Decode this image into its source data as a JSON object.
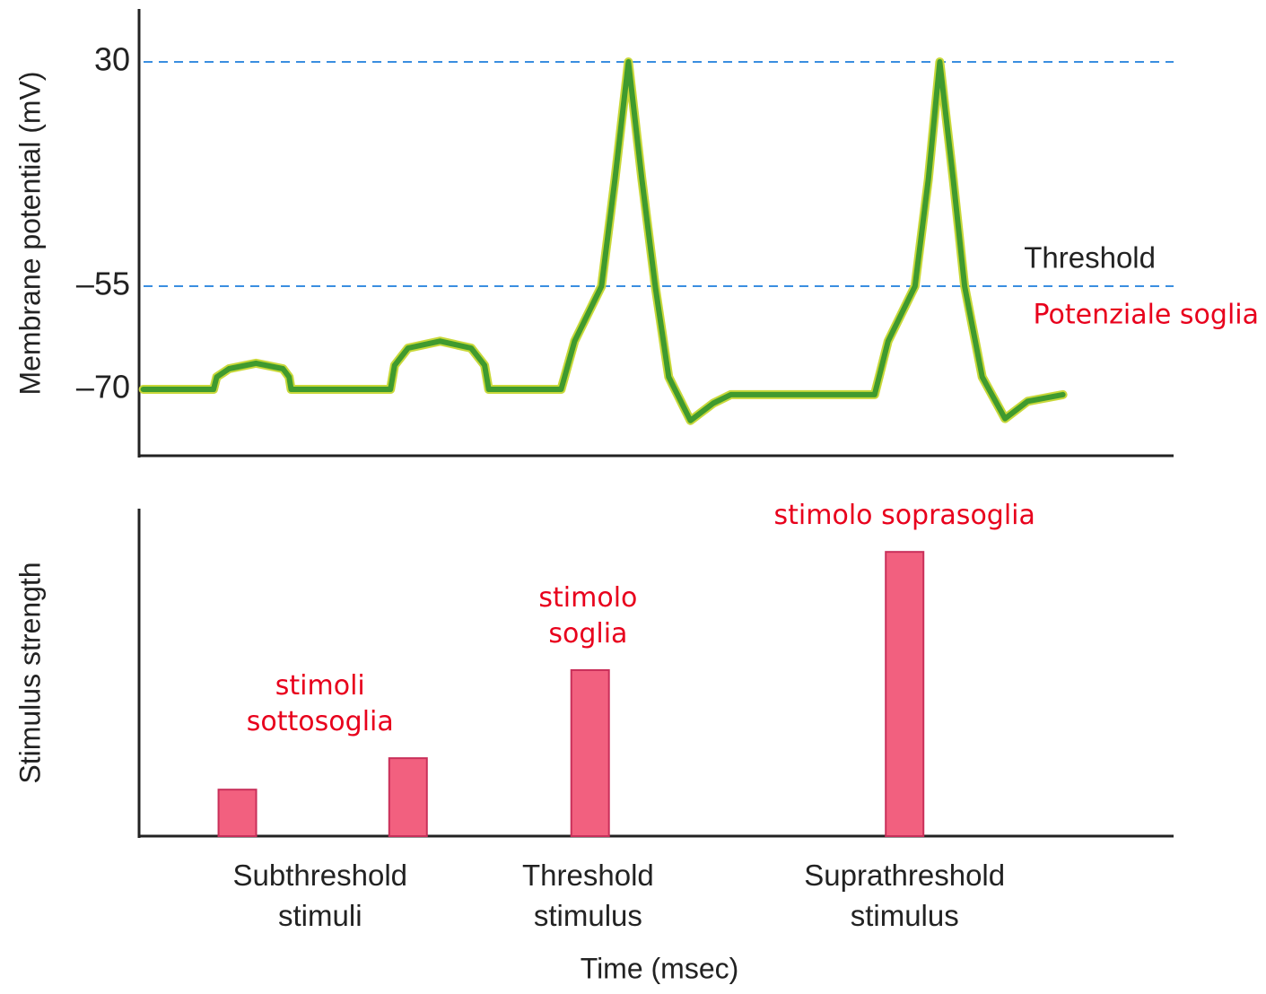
{
  "chart_data": [
    {
      "type": "line",
      "y_label": "Membrane potential (mV)",
      "xlim": [
        0,
        100
      ],
      "ylim": [
        -80,
        50
      ],
      "yticks": [
        {
          "value": -70,
          "label": "–70"
        },
        {
          "value": -55,
          "label": "–55"
        },
        30
      ],
      "reference_lines": [
        {
          "value": 30,
          "color": "#3a8ee0"
        },
        {
          "value": -55,
          "color": "#3a8ee0",
          "label": "Threshold",
          "note": "Potenziale soglia"
        }
      ],
      "x": [
        0.4,
        7.2,
        7.5,
        8.7,
        11.3,
        13.9,
        14.5,
        14.7,
        24.3,
        24.7,
        26.0,
        29.1,
        32.1,
        33.4,
        33.8,
        40.8,
        42.1,
        44.7,
        46.0,
        47.3,
        48.6,
        49.9,
        51.2,
        53.3,
        55.5,
        57.2,
        71.1,
        72.4,
        75.0,
        76.3,
        77.4,
        78.7,
        79.8,
        81.5,
        83.7,
        85.9,
        89.3
      ],
      "series": [
        {
          "color": "#3f9a2e",
          "values": [
            -70,
            -70,
            -68.2,
            -67,
            -66.2,
            -67,
            -68.2,
            -70,
            -70,
            -66.5,
            -64,
            -63,
            -64,
            -66.5,
            -70,
            -70,
            -63,
            -55,
            -14.5,
            30,
            -14.5,
            -55,
            -68.2,
            -74.7,
            -72.1,
            -70.8,
            -70.8,
            -63,
            -55,
            -14.5,
            30,
            -14.5,
            -55,
            -68.2,
            -74.4,
            -71.8,
            -70.8
          ]
        }
      ]
    },
    {
      "type": "bar",
      "y_label": "Stimulus strength",
      "x_label": "Time (msec)",
      "xlim": [
        0,
        100
      ],
      "ylim": [
        0,
        100
      ],
      "x": [
        9.5,
        26.0,
        43.6,
        74.0
      ],
      "values": [
        14.2,
        23.8,
        50.7,
        86.8
      ],
      "color": "#f2607f",
      "groups": [
        {
          "x": 17.5,
          "label": [
            "Subthreshold",
            "stimuli"
          ],
          "note": [
            "stimoli",
            "sottosoglia"
          ]
        },
        {
          "x": 43.4,
          "label": [
            "Threshold",
            "stimulus"
          ],
          "note": [
            "stimolo",
            "soglia"
          ]
        },
        {
          "x": 74.0,
          "label": [
            "Suprathreshold",
            "stimulus"
          ],
          "note": [
            "stimolo soprasoglia"
          ]
        }
      ]
    }
  ]
}
